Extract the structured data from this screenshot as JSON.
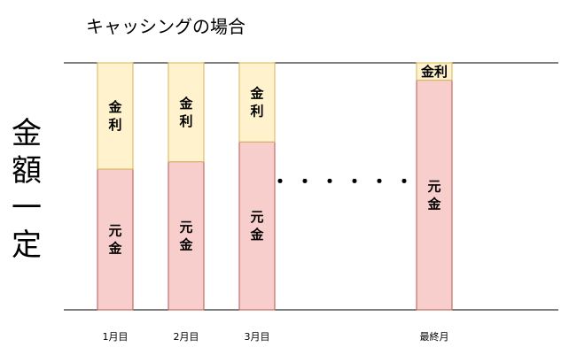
{
  "chart_data": {
    "type": "bar",
    "stacked": true,
    "title": "キャッシングの場合",
    "ylabel": "金額一定",
    "xlabel": "",
    "categories": [
      "1月目",
      "2月目",
      "3月目",
      "最終月"
    ],
    "series": [
      {
        "name": "元金",
        "color": "#f8cecc",
        "stroke": "#b85450",
        "values": [
          57,
          60,
          68,
          93
        ]
      },
      {
        "name": "金利",
        "color": "#fff2cc",
        "stroke": "#d6b656",
        "values": [
          43,
          40,
          32,
          7
        ]
      }
    ],
    "ylim": [
      0,
      100
    ],
    "grid": false,
    "legend": "none",
    "gap_marker": "・・・・・・"
  }
}
